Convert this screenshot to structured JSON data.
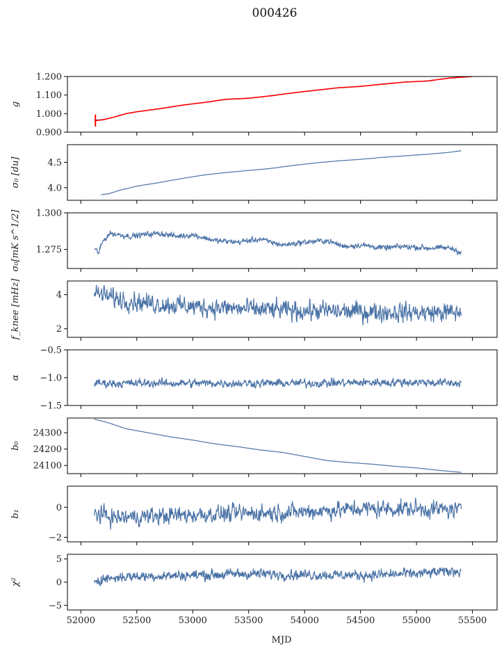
{
  "title": "000426",
  "colors": {
    "series": "#4a72a6",
    "fit": "#ff0000",
    "axes": "#000000",
    "text": "#222222"
  },
  "chart_data": [
    {
      "type": "line",
      "id": "g",
      "ylabel": "g",
      "ylim": [
        0.9,
        1.2
      ],
      "yticks": [
        0.9,
        1.0,
        1.1,
        1.2
      ],
      "series": [
        {
          "name": "g",
          "color": "#4a72a6",
          "points": [
            [
              52120,
              0.965
            ],
            [
              52200,
              0.968
            ],
            [
              52300,
              0.982
            ],
            [
              52400,
              1.0
            ],
            [
              52500,
              1.01
            ],
            [
              52700,
              1.025
            ],
            [
              52900,
              1.045
            ],
            [
              53100,
              1.06
            ],
            [
              53300,
              1.078
            ],
            [
              53500,
              1.082
            ],
            [
              53700,
              1.097
            ],
            [
              53900,
              1.112
            ],
            [
              54100,
              1.125
            ],
            [
              54300,
              1.14
            ],
            [
              54500,
              1.146
            ],
            [
              54700,
              1.16
            ],
            [
              54900,
              1.17
            ],
            [
              55100,
              1.175
            ],
            [
              55300,
              1.193
            ],
            [
              55400,
              1.197
            ]
          ]
        },
        {
          "name": "g-fit",
          "color": "#ff0000",
          "points": [
            [
              52130,
              0.962
            ],
            [
              52200,
              0.967
            ],
            [
              52300,
              0.982
            ],
            [
              52400,
              0.999
            ],
            [
              52500,
              1.01
            ],
            [
              52700,
              1.026
            ],
            [
              52900,
              1.045
            ],
            [
              53100,
              1.06
            ],
            [
              53300,
              1.077
            ],
            [
              53500,
              1.083
            ],
            [
              53700,
              1.096
            ],
            [
              53900,
              1.112
            ],
            [
              54100,
              1.126
            ],
            [
              54300,
              1.139
            ],
            [
              54500,
              1.147
            ],
            [
              54700,
              1.159
            ],
            [
              54900,
              1.17
            ],
            [
              55100,
              1.176
            ],
            [
              55300,
              1.192
            ],
            [
              55500,
              1.2
            ]
          ]
        }
      ]
    },
    {
      "type": "line",
      "id": "sigma0",
      "ylabel": "σ₀ [du]",
      "ylim": [
        3.75,
        4.85
      ],
      "yticks": [
        4.0,
        4.5
      ],
      "series": [
        {
          "name": "sigma0",
          "color": "#4a72a6",
          "points": [
            [
              52180,
              3.86
            ],
            [
              52250,
              3.88
            ],
            [
              52350,
              3.95
            ],
            [
              52500,
              4.03
            ],
            [
              52700,
              4.1
            ],
            [
              52900,
              4.18
            ],
            [
              53100,
              4.25
            ],
            [
              53300,
              4.3
            ],
            [
              53500,
              4.34
            ],
            [
              53700,
              4.38
            ],
            [
              53900,
              4.44
            ],
            [
              54100,
              4.49
            ],
            [
              54300,
              4.53
            ],
            [
              54500,
              4.56
            ],
            [
              54700,
              4.6
            ],
            [
              54900,
              4.63
            ],
            [
              55100,
              4.66
            ],
            [
              55300,
              4.7
            ],
            [
              55400,
              4.73
            ]
          ]
        }
      ]
    },
    {
      "type": "line",
      "id": "sigma0b",
      "ylabel": "σ₀[mK s^1/2]",
      "ylim": [
        1.262,
        1.3
      ],
      "yticks": [
        1.275,
        1.3
      ],
      "series": [
        {
          "name": "sigma0b",
          "color": "#4a72a6",
          "noise": 0.0015,
          "points": [
            [
              52120,
              1.275
            ],
            [
              52160,
              1.273
            ],
            [
              52200,
              1.281
            ],
            [
              52260,
              1.286
            ],
            [
              52350,
              1.285
            ],
            [
              52450,
              1.284
            ],
            [
              52550,
              1.285
            ],
            [
              52700,
              1.286
            ],
            [
              52850,
              1.284
            ],
            [
              53000,
              1.285
            ],
            [
              53200,
              1.281
            ],
            [
              53400,
              1.28
            ],
            [
              53600,
              1.282
            ],
            [
              53800,
              1.278
            ],
            [
              54000,
              1.28
            ],
            [
              54200,
              1.281
            ],
            [
              54350,
              1.277
            ],
            [
              54500,
              1.278
            ],
            [
              54700,
              1.276
            ],
            [
              54900,
              1.277
            ],
            [
              55100,
              1.276
            ],
            [
              55300,
              1.276
            ],
            [
              55400,
              1.273
            ]
          ]
        }
      ]
    },
    {
      "type": "line",
      "id": "fknee",
      "ylabel": "f_knee [mHz]",
      "ylim": [
        1.5,
        4.8
      ],
      "yticks": [
        2,
        4
      ],
      "series": [
        {
          "name": "fknee",
          "color": "#4a72a6",
          "noise": 0.45,
          "points": [
            [
              52120,
              4.1
            ],
            [
              52300,
              3.8
            ],
            [
              52600,
              3.5
            ],
            [
              53000,
              3.3
            ],
            [
              53500,
              3.15
            ],
            [
              54000,
              3.05
            ],
            [
              54500,
              3.0
            ],
            [
              55000,
              2.95
            ],
            [
              55400,
              2.95
            ]
          ]
        }
      ]
    },
    {
      "type": "line",
      "id": "alpha",
      "ylabel": "α",
      "ylim": [
        -1.5,
        -0.5
      ],
      "yticks": [
        -1.5,
        -1.0,
        -0.5
      ],
      "series": [
        {
          "name": "alpha",
          "color": "#4a72a6",
          "noise": 0.06,
          "points": [
            [
              52120,
              -1.1
            ],
            [
              53000,
              -1.1
            ],
            [
              54000,
              -1.1
            ],
            [
              55000,
              -1.08
            ],
            [
              55400,
              -1.1
            ]
          ]
        }
      ]
    },
    {
      "type": "line",
      "id": "b0",
      "ylabel": "b₀",
      "ylim": [
        24050,
        24390
      ],
      "yticks": [
        24100,
        24200,
        24300
      ],
      "series": [
        {
          "name": "b0",
          "color": "#4a72a6",
          "points": [
            [
              52120,
              24383
            ],
            [
              52250,
              24360
            ],
            [
              52400,
              24325
            ],
            [
              52600,
              24300
            ],
            [
              52800,
              24275
            ],
            [
              53000,
              24255
            ],
            [
              53200,
              24232
            ],
            [
              53400,
              24215
            ],
            [
              53600,
              24195
            ],
            [
              53800,
              24180
            ],
            [
              54000,
              24155
            ],
            [
              54200,
              24130
            ],
            [
              54400,
              24118
            ],
            [
              54600,
              24108
            ],
            [
              54800,
              24095
            ],
            [
              55000,
              24085
            ],
            [
              55200,
              24070
            ],
            [
              55400,
              24058
            ]
          ]
        }
      ]
    },
    {
      "type": "line",
      "id": "b1",
      "ylabel": "b₁",
      "ylim": [
        -2.3,
        1.4
      ],
      "yticks": [
        -2,
        0
      ],
      "series": [
        {
          "name": "b1",
          "color": "#4a72a6",
          "noise": 0.45,
          "points": [
            [
              52120,
              -0.4
            ],
            [
              52300,
              -0.7
            ],
            [
              52600,
              -0.6
            ],
            [
              53000,
              -0.5
            ],
            [
              53500,
              -0.4
            ],
            [
              54000,
              -0.3
            ],
            [
              54500,
              -0.1
            ],
            [
              55000,
              -0.1
            ],
            [
              55400,
              -0.2
            ]
          ]
        }
      ]
    },
    {
      "type": "line",
      "id": "chi2",
      "ylabel": "χ²",
      "ylim": [
        -6,
        6
      ],
      "yticks": [
        -5,
        0,
        5
      ],
      "xlabel": "MJD",
      "xticks": [
        52000,
        52500,
        53000,
        53500,
        54000,
        54500,
        55000,
        55500
      ],
      "series": [
        {
          "name": "chi2",
          "color": "#4a72a6",
          "noise": 0.9,
          "points": [
            [
              52120,
              0.5
            ],
            [
              52400,
              1.2
            ],
            [
              53000,
              1.5
            ],
            [
              53500,
              1.8
            ],
            [
              54000,
              1.6
            ],
            [
              54500,
              1.5
            ],
            [
              55000,
              1.8
            ],
            [
              55400,
              2.5
            ]
          ]
        }
      ]
    }
  ],
  "xaxis": {
    "label": "MJD",
    "xlim": [
      51880,
      55720
    ],
    "ticks": [
      52000,
      52500,
      53000,
      53500,
      54000,
      54500,
      55000,
      55500
    ]
  }
}
